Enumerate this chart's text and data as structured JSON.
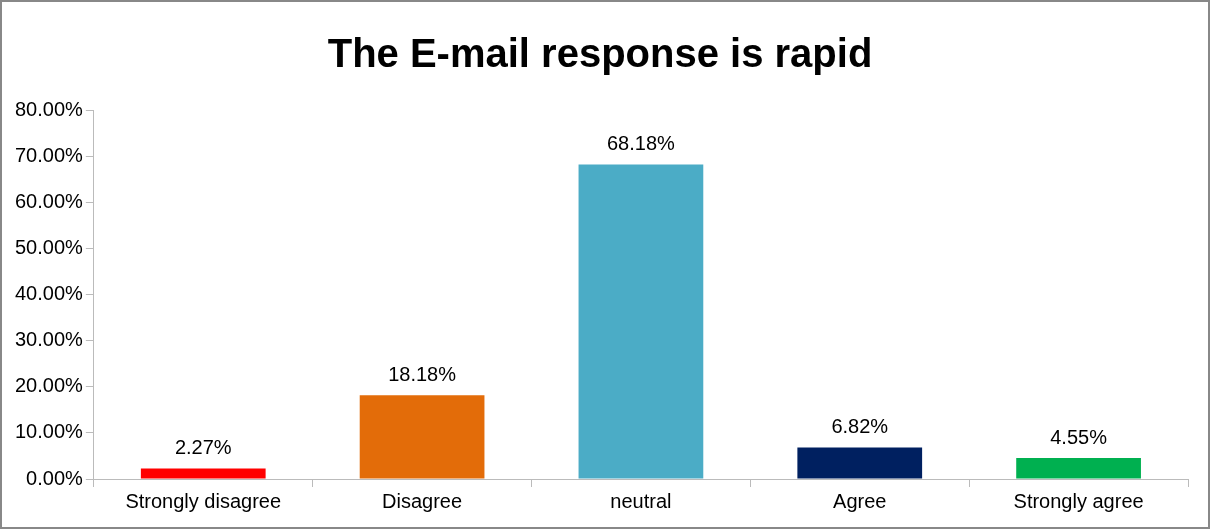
{
  "chart_data": {
    "type": "bar",
    "title": "The E-mail response is rapid",
    "categories": [
      "Strongly disagree",
      "Disagree",
      "neutral",
      "Agree",
      "Strongly agree"
    ],
    "values": [
      2.27,
      18.18,
      68.18,
      6.82,
      4.55
    ],
    "colors": [
      "#ff0000",
      "#e36c09",
      "#4bacc6",
      "#002060",
      "#00b050"
    ],
    "value_labels": [
      "2.27%",
      "18.18%",
      "68.18%",
      "6.82%",
      "4.55%"
    ],
    "ylim": [
      0,
      80
    ],
    "yticks": [
      {
        "value": 0,
        "label": "0.00%"
      },
      {
        "value": 10,
        "label": "10.00%"
      },
      {
        "value": 20,
        "label": "20.00%"
      },
      {
        "value": 30,
        "label": "30.00%"
      },
      {
        "value": 40,
        "label": "40.00%"
      },
      {
        "value": 50,
        "label": "50.00%"
      },
      {
        "value": 60,
        "label": "60.00%"
      },
      {
        "value": 70,
        "label": "70.00%"
      },
      {
        "value": 80,
        "label": "80.00%"
      }
    ],
    "grid": false,
    "legend": false
  }
}
